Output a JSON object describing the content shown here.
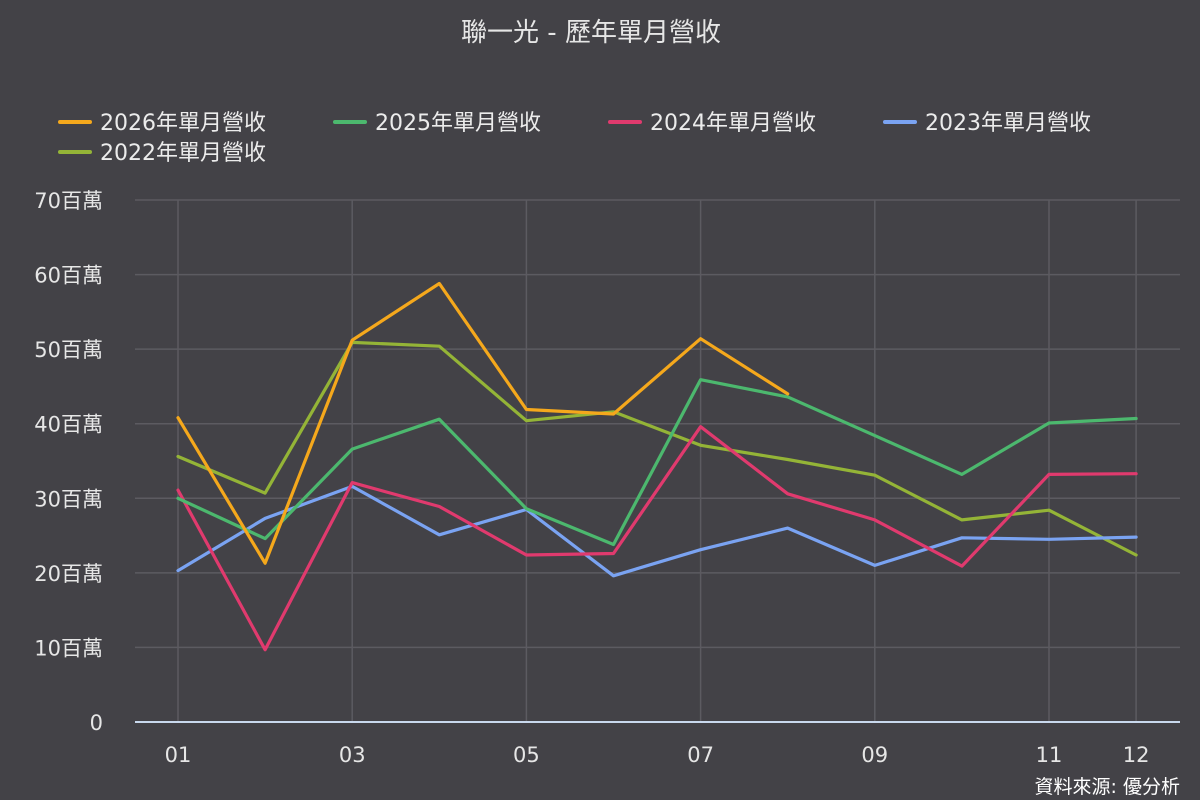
{
  "chart_data": {
    "type": "line",
    "title": "聯一光 - 歷年單月營收",
    "x": [
      "01",
      "02",
      "03",
      "04",
      "05",
      "06",
      "07",
      "08",
      "09",
      "10",
      "11",
      "12"
    ],
    "x_tick_labels": [
      "01",
      "03",
      "05",
      "07",
      "09",
      "11",
      "12"
    ],
    "y_ticks": [
      {
        "value": 0,
        "label": "0"
      },
      {
        "value": 10,
        "label": "10百萬"
      },
      {
        "value": 20,
        "label": "20百萬"
      },
      {
        "value": 30,
        "label": "30百萬"
      },
      {
        "value": 40,
        "label": "40百萬"
      },
      {
        "value": 50,
        "label": "50百萬"
      },
      {
        "value": 60,
        "label": "60百萬"
      },
      {
        "value": 70,
        "label": "70百萬"
      }
    ],
    "ylim": [
      0,
      70
    ],
    "grid": true,
    "legend_position": "top",
    "series": [
      {
        "name": "2026年單月營收",
        "color": "#f5a81c",
        "values": [
          40.8,
          21.3,
          51.2,
          58.8,
          41.9,
          41.3,
          51.4,
          44.0,
          null,
          null,
          null,
          null
        ]
      },
      {
        "name": "2025年單月營收",
        "color": "#4cb86e",
        "values": [
          30.0,
          24.6,
          36.6,
          40.6,
          28.6,
          23.8,
          45.9,
          43.6,
          38.4,
          33.2,
          40.1,
          40.7
        ]
      },
      {
        "name": "2024年單月營收",
        "color": "#e03a6e",
        "values": [
          31.1,
          9.7,
          32.1,
          28.9,
          22.4,
          22.6,
          39.6,
          30.6,
          27.1,
          20.9,
          33.2,
          33.3
        ]
      },
      {
        "name": "2023年單月營收",
        "color": "#7aa3f2",
        "values": [
          20.3,
          27.3,
          31.6,
          25.1,
          28.5,
          19.6,
          23.1,
          26.0,
          21.0,
          24.7,
          24.5,
          24.8
        ]
      },
      {
        "name": "2022年單月營收",
        "color": "#94b437",
        "values": [
          35.6,
          30.7,
          50.9,
          50.4,
          40.4,
          41.6,
          37.1,
          35.2,
          33.1,
          27.1,
          28.4,
          22.4
        ]
      }
    ]
  },
  "footer": {
    "source": "資料來源: 優分析"
  }
}
